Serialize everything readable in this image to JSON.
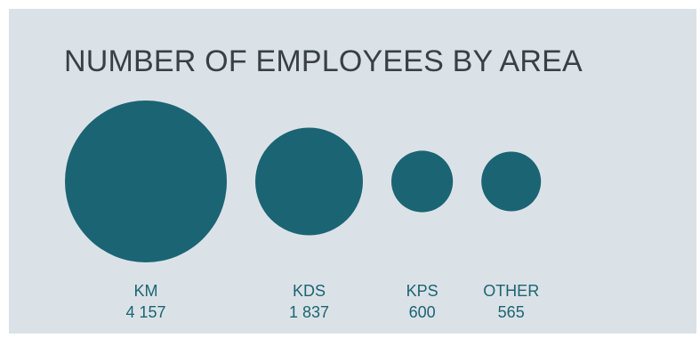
{
  "chart_data": {
    "type": "bubble",
    "title": "NUMBER OF EMPLOYEES BY AREA",
    "categories": [
      "KM",
      "KDS",
      "KPS",
      "OTHER"
    ],
    "value_labels": [
      "4 157",
      "1 837",
      "600",
      "565"
    ],
    "values": [
      4157,
      1837,
      600,
      565
    ],
    "bubble_color": "#1b6474",
    "label_color": "#1b6474",
    "background": "#dbe2e7",
    "grid": false,
    "legend": "none"
  }
}
